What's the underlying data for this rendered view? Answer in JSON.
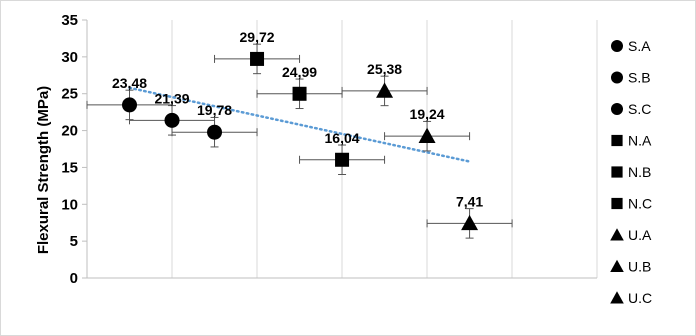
{
  "chart_data": {
    "type": "scatter",
    "title": "",
    "xlabel": "",
    "ylabel": "Flexural Strength (MPa)",
    "ylim": [
      0,
      35
    ],
    "yticks": [
      0,
      5,
      10,
      15,
      20,
      25,
      30,
      35
    ],
    "xlim": [
      0,
      10
    ],
    "grid": "vertical",
    "legend_position": "right",
    "colors": {
      "marker": "#000000",
      "trend": "#5B9BD5",
      "grid": "#d9d9d9"
    },
    "series": [
      {
        "name": "S.A",
        "marker": "circle",
        "x": 0.5,
        "y": 23.48,
        "label": "23,48",
        "xerr": 0.5,
        "yerr": 2.0
      },
      {
        "name": "S.B",
        "marker": "circle",
        "x": 1.0,
        "y": 21.39,
        "label": "21,39",
        "xerr": 0.5,
        "yerr": 2.0
      },
      {
        "name": "S.C",
        "marker": "circle",
        "x": 1.5,
        "y": 19.78,
        "label": "19,78",
        "xerr": 0.5,
        "yerr": 2.0
      },
      {
        "name": "N.A",
        "marker": "square",
        "x": 2.0,
        "y": 29.72,
        "label": "29,72",
        "xerr": 0.5,
        "yerr": 2.0
      },
      {
        "name": "N.B",
        "marker": "square",
        "x": 2.5,
        "y": 24.99,
        "label": "24,99",
        "xerr": 0.5,
        "yerr": 2.0
      },
      {
        "name": "N.C",
        "marker": "square",
        "x": 3.0,
        "y": 16.04,
        "label": "16,04",
        "xerr": 0.5,
        "yerr": 2.0
      },
      {
        "name": "U.A",
        "marker": "triangle",
        "x": 3.5,
        "y": 25.38,
        "label": "25,38",
        "xerr": 0.5,
        "yerr": 2.0
      },
      {
        "name": "U.B",
        "marker": "triangle",
        "x": 4.0,
        "y": 19.24,
        "label": "19,24",
        "xerr": 0.5,
        "yerr": 2.0
      },
      {
        "name": "U.C",
        "marker": "triangle",
        "x": 4.5,
        "y": 7.41,
        "label": "7,41",
        "xerr": 0.5,
        "yerr": 2.0
      }
    ],
    "trendline": {
      "style": "dotted",
      "x": [
        0.5,
        4.5
      ],
      "y": [
        25.8,
        15.8
      ]
    }
  }
}
